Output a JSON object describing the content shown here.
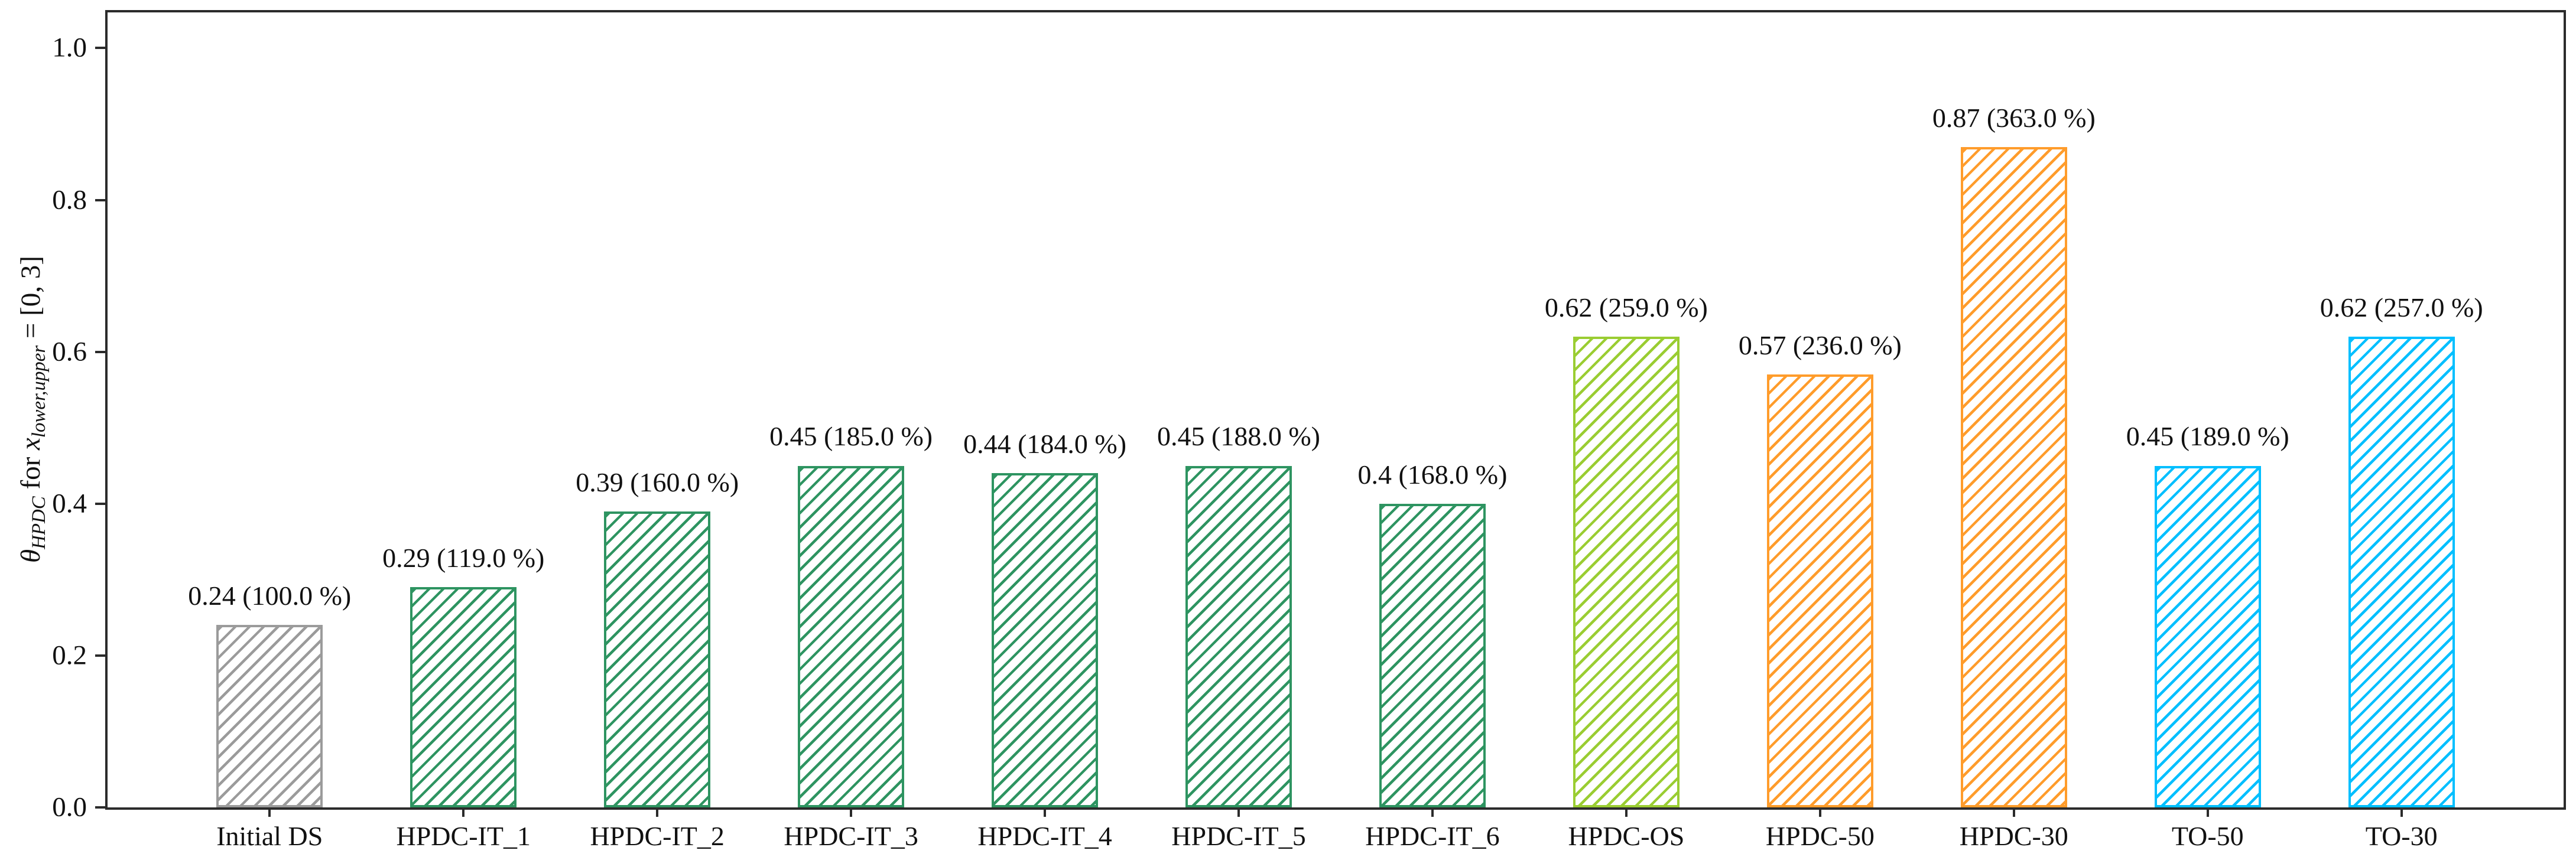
{
  "chart_data": {
    "type": "bar",
    "title": "",
    "xlabel": "",
    "ylabel": "θ_HPDC for x_lower,upper = [0, 3]",
    "ylabel_parts": {
      "theta": "θ",
      "theta_sub": "HPDC",
      "for_text": " for ",
      "x": "x",
      "x_sub": "lower,upper",
      "equals_text": " = [0, 3]"
    },
    "categories": [
      "Initial DS",
      "HPDC-IT_1",
      "HPDC-IT_2",
      "HPDC-IT_3",
      "HPDC-IT_4",
      "HPDC-IT_5",
      "HPDC-IT_6",
      "HPDC-OS",
      "HPDC-50",
      "HPDC-30",
      "TO-50",
      "TO-30"
    ],
    "values": [
      0.24,
      0.29,
      0.39,
      0.45,
      0.44,
      0.45,
      0.4,
      0.62,
      0.57,
      0.87,
      0.45,
      0.62
    ],
    "bar_labels": [
      "0.24 (100.0 %)",
      "0.29 (119.0 %)",
      "0.39 (160.0 %)",
      "0.45 (185.0 %)",
      "0.44 (184.0 %)",
      "0.45 (188.0 %)",
      "0.4 (168.0 %)",
      "0.62 (259.0 %)",
      "0.57 (236.0 %)",
      "0.87 (363.0 %)",
      "0.45 (189.0 %)",
      "0.62 (257.0 %)"
    ],
    "bar_colors": [
      "#9b9b9b",
      "#2E9461",
      "#2E9461",
      "#2E9461",
      "#2E9461",
      "#2E9461",
      "#2E9461",
      "#9ACD32",
      "#FF9C2B",
      "#FF9C2B",
      "#00BFFF",
      "#00BFFF"
    ],
    "hatch_style": "/",
    "yticks": [
      "0.0",
      "0.2",
      "0.4",
      "0.6",
      "0.8",
      "1.0"
    ],
    "ylim": [
      0,
      1.047
    ],
    "grid": false,
    "legend": null,
    "axis_color": "#2b2b2b"
  }
}
